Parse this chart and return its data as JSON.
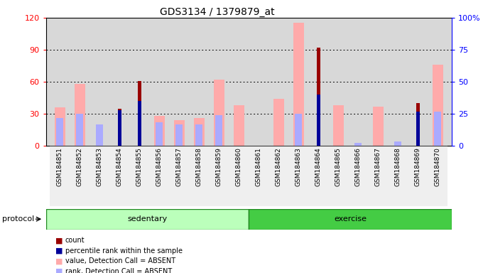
{
  "title": "GDS3134 / 1379879_at",
  "samples": [
    "GSM184851",
    "GSM184852",
    "GSM184853",
    "GSM184854",
    "GSM184855",
    "GSM184856",
    "GSM184857",
    "GSM184858",
    "GSM184859",
    "GSM184860",
    "GSM184861",
    "GSM184862",
    "GSM184863",
    "GSM184864",
    "GSM184865",
    "GSM184866",
    "GSM184867",
    "GSM184868",
    "GSM184869",
    "GSM184870"
  ],
  "count": [
    0,
    0,
    0,
    35,
    61,
    0,
    0,
    0,
    0,
    0,
    0,
    0,
    0,
    92,
    0,
    0,
    0,
    0,
    40,
    0
  ],
  "percentile_rank": [
    0,
    0,
    0,
    28,
    35,
    0,
    0,
    0,
    0,
    0,
    0,
    0,
    0,
    40,
    0,
    0,
    0,
    0,
    27,
    0
  ],
  "value_absent": [
    36,
    58,
    0,
    0,
    0,
    28,
    24,
    26,
    62,
    38,
    0,
    44,
    115,
    0,
    38,
    0,
    37,
    0,
    0,
    76
  ],
  "rank_absent": [
    26,
    30,
    20,
    0,
    0,
    22,
    20,
    20,
    29,
    0,
    0,
    0,
    30,
    0,
    0,
    3,
    0,
    4,
    0,
    32
  ],
  "sedentary_count": 10,
  "groups": [
    "sedentary",
    "exercise"
  ],
  "ylim_left": [
    0,
    120
  ],
  "ylim_right": [
    0,
    100
  ],
  "yticks_left": [
    0,
    30,
    60,
    90,
    120
  ],
  "yticks_right": [
    0,
    25,
    50,
    75,
    100
  ],
  "ytick_labels_right": [
    "0",
    "25",
    "50",
    "75",
    "100%"
  ],
  "color_count": "#990000",
  "color_rank": "#000099",
  "color_value_absent": "#ffaaaa",
  "color_rank_absent": "#aaaaff",
  "color_sedentary": "#bbffbb",
  "color_exercise": "#44cc44",
  "plot_bg": "#d8d8d8"
}
